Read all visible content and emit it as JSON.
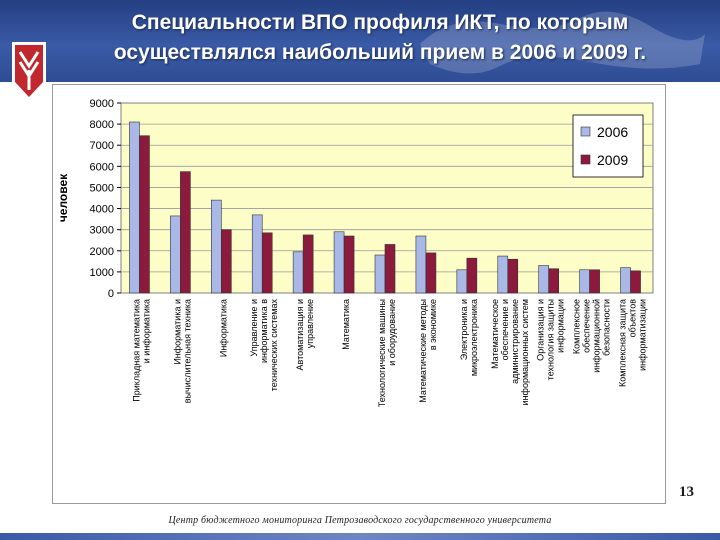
{
  "slide": {
    "title_line1": "Специальности ВПО профиля ИКТ, по которым",
    "title_line2": "осуществлялся наибольший прием в 2006 и 2009 г.",
    "page_number": "13",
    "footer": "Центр бюджетного мониторинга Петрозаводского государственного университета"
  },
  "colors": {
    "series_2006": "#a9b8e6",
    "series_2009": "#8b1a3c",
    "plot_bg": "#fdfdc8",
    "header": "#2f4d94",
    "logo_red": "#c0282d"
  },
  "chart_data": {
    "type": "bar",
    "title": "",
    "xlabel": "",
    "ylabel": "человек",
    "ylim": [
      0,
      9000
    ],
    "yticks": [
      "0",
      "1000",
      "2000",
      "3000",
      "4000",
      "5000",
      "6000",
      "7000",
      "8000",
      "9000"
    ],
    "grid": true,
    "legend_position": "top-right",
    "categories": [
      "Прикладная математика и информатика",
      "Информатика и вычислительная техника",
      "Информатика",
      "Управление и информатика в технических системах",
      "Автоматизация и управление",
      "Математика",
      "Технологические машины и оборудование",
      "Математические методы в экономике",
      "Электроника и микроэлектроника",
      "Математическое обеспечение и администрирование информационных систем",
      "Организация и технология защиты информации",
      "Комплексное обеспечение информационной безопасности",
      "Комплексная защита объектов информатизации"
    ],
    "series": [
      {
        "name": "2006",
        "values": [
          8100,
          3650,
          4400,
          3700,
          1950,
          2900,
          1800,
          2700,
          1100,
          1750,
          1300,
          1100,
          1200
        ]
      },
      {
        "name": "2009",
        "values": [
          7450,
          5750,
          3000,
          2850,
          2750,
          2700,
          2300,
          1900,
          1650,
          1600,
          1150,
          1100,
          1050
        ]
      }
    ]
  }
}
